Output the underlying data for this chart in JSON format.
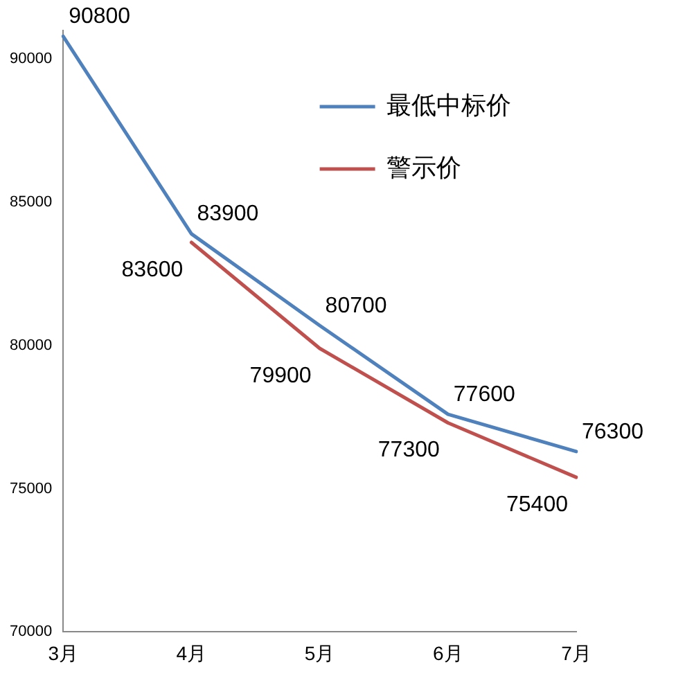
{
  "chart_data": {
    "type": "line",
    "categories": [
      "3月",
      "4月",
      "5月",
      "6月",
      "7月"
    ],
    "series": [
      {
        "name": "最低中标价",
        "color": "#4f81bd",
        "values": [
          90800,
          83900,
          80700,
          77600,
          76300
        ]
      },
      {
        "name": "警示价",
        "color": "#c0504d",
        "values": [
          null,
          83600,
          79900,
          77300,
          75400
        ]
      }
    ],
    "ylim": [
      70000,
      91000
    ],
    "yticks": [
      70000,
      75000,
      80000,
      85000,
      90000
    ],
    "grid": false,
    "legend": "top right",
    "marker": "none",
    "line_style": "solid",
    "data_labels": true
  }
}
